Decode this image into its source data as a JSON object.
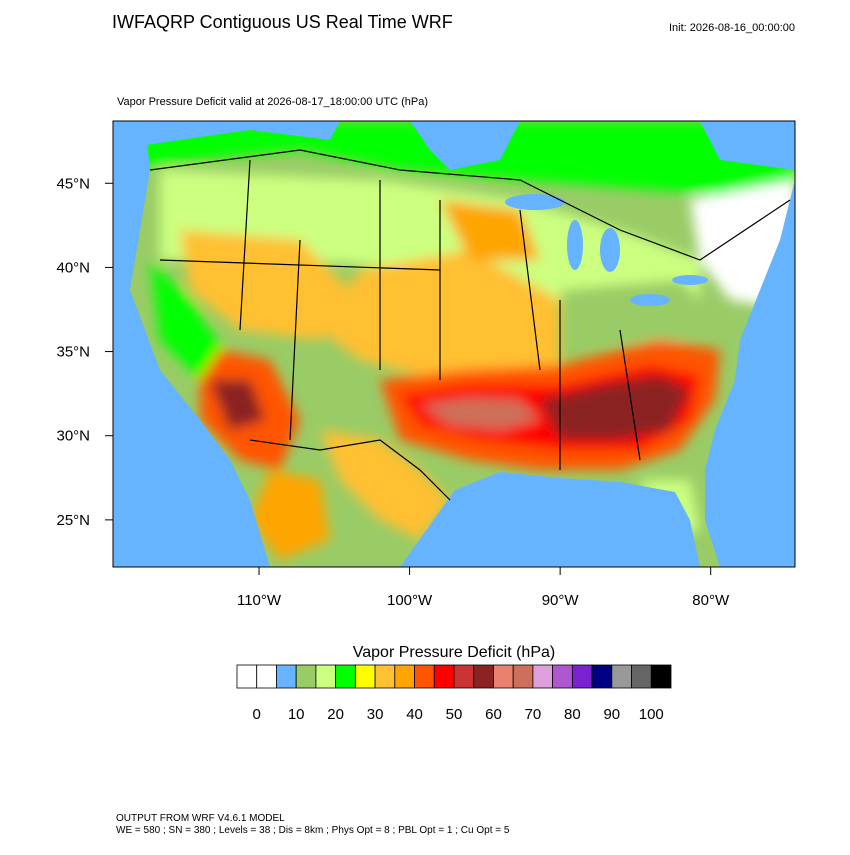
{
  "header": {
    "title": "IWFAQRP Contiguous US Real Time WRF",
    "init": "Init: 2026-08-16_00:00:00"
  },
  "map": {
    "subtitle": "Vapor Pressure Deficit valid at 2026-08-17_18:00:00 UTC   (hPa)",
    "xlim": [
      -119.7,
      -74.4
    ],
    "ylim": [
      22.2,
      48.7
    ],
    "xticks": [
      {
        "value": -110,
        "label": "110°W"
      },
      {
        "value": -100,
        "label": "100°W"
      },
      {
        "value": -90,
        "label": "90°W"
      },
      {
        "value": -80,
        "label": "80°W"
      }
    ],
    "yticks": [
      {
        "value": 25,
        "label": "25°N"
      },
      {
        "value": 30,
        "label": "30°N"
      },
      {
        "value": 35,
        "label": "35°N"
      },
      {
        "value": 40,
        "label": "40°N"
      },
      {
        "value": 45,
        "label": "45°N"
      }
    ]
  },
  "colorbar": {
    "title": "Vapor Pressure Deficit  (hPa)",
    "step": 5,
    "colors": [
      "#ffffff",
      "#ffffff",
      "#66b3ff",
      "#99cc66",
      "#ccff80",
      "#00ff00",
      "#ffff00",
      "#ffc033",
      "#ffa500",
      "#ff5500",
      "#ff0000",
      "#cc3333",
      "#8b2323",
      "#e8826e",
      "#cd6f5a",
      "#dda0dd",
      "#b057d0",
      "#7b22d0",
      "#000080",
      "#999999",
      "#666666",
      "#000000"
    ],
    "ticks": [
      0,
      10,
      20,
      30,
      40,
      50,
      60,
      70,
      80,
      90,
      100
    ]
  },
  "footer": {
    "line1": "OUTPUT FROM WRF V4.6.1 MODEL",
    "line2": "WE = 580 ; SN = 380 ; Levels = 38 ; Dis = 8km ; Phys Opt = 8 ; PBL Opt = 1 ; Cu Opt = 5"
  }
}
